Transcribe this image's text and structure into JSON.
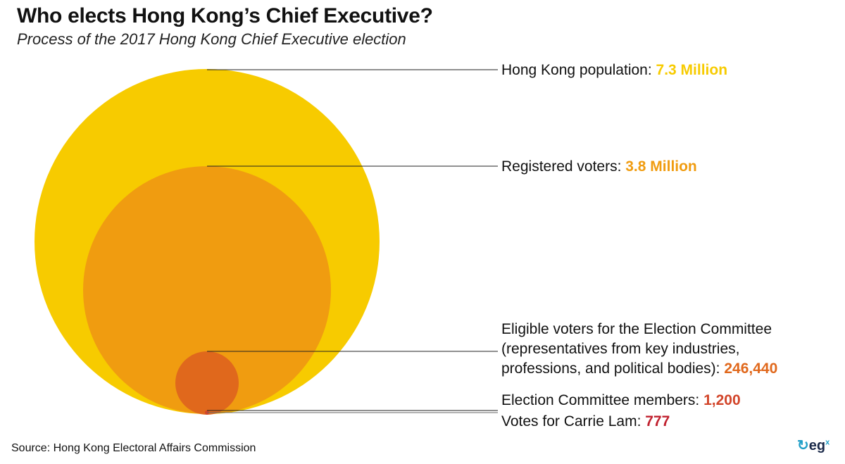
{
  "title": "Who elects Hong Kong’s Chief Executive?",
  "subtitle": "Process of the 2017 Hong Kong Chief Executive election",
  "levels": [
    {
      "label": "Hong Kong population: ",
      "value": "7.3 Million",
      "color": "#f7cb00"
    },
    {
      "label": "Registered voters: ",
      "value": "3.8 Million",
      "color": "#f09c10"
    },
    {
      "label": "Eligible voters for the Election Committee (representatives from key industries, professions, and political bodies): ",
      "value": "246,440",
      "color": "#e0681c"
    },
    {
      "label": "Election Committee members: ",
      "value": "1,200",
      "color": "#d2452a"
    },
    {
      "label": "Votes for Carrie Lam: ",
      "value": "777",
      "color": "#c0202e"
    }
  ],
  "source": "Source: Hong Kong Electoral Affairs Commission",
  "logo": {
    "text": "eg",
    "sup": "x"
  }
}
